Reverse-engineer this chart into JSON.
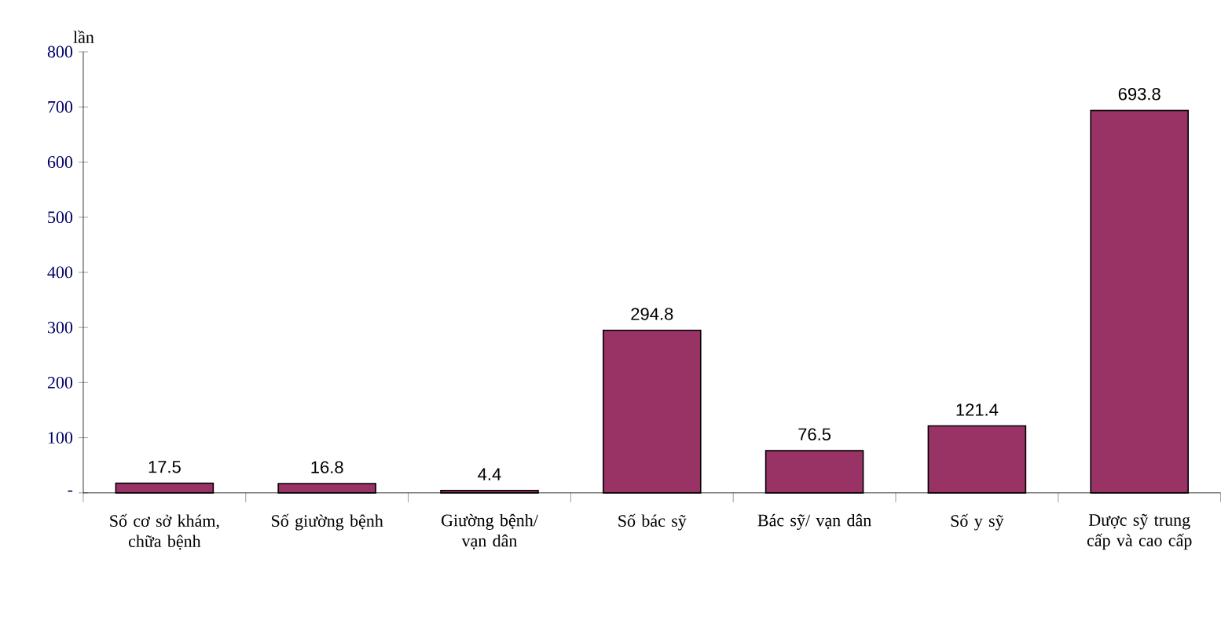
{
  "chart_data": {
    "type": "bar",
    "ylabel": "lần",
    "categories": [
      "Số cơ sở khám, chữa bệnh",
      "Số giường bệnh",
      "Giường bệnh/ vạn dân",
      "Số bác sỹ",
      "Bác sỹ/ vạn dân",
      "Số y sỹ",
      "Dược sỹ trung cấp và cao cấp"
    ],
    "values": [
      17.5,
      16.8,
      4.4,
      294.8,
      76.5,
      121.4,
      693.8
    ],
    "color": "#993366",
    "ylim": [
      0,
      800
    ],
    "yticks": [
      {
        "value": 0,
        "label": "-"
      },
      100,
      200,
      300,
      400,
      500,
      600,
      700,
      800
    ],
    "data_labels": true
  }
}
